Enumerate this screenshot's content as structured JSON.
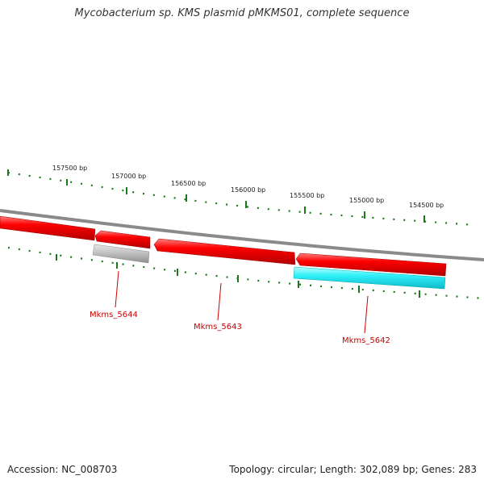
{
  "title": "Mycobacterium sp. KMS plasmid pMKMS01, complete sequence",
  "accession": "Accession: NC_008703",
  "summary": "Topology: circular; Length: 302,089 bp; Genes: 283",
  "ruler_labels": [
    "157500 bp",
    "157000 bp",
    "156500 bp",
    "156000 bp",
    "155500 bp",
    "155000 bp",
    "154500 bp"
  ],
  "genes": [
    {
      "label": "Mkms_5644"
    },
    {
      "label": "Mkms_5643"
    },
    {
      "label": "Mkms_5642"
    }
  ],
  "colors": {
    "backbone": "#8a8a8a",
    "cds": "#ee0000",
    "tick": "#1a7a1a",
    "gene_label": "#cc0000",
    "feature_gray": "#b8b8b8",
    "feature_cyan": "#22e8f0"
  }
}
